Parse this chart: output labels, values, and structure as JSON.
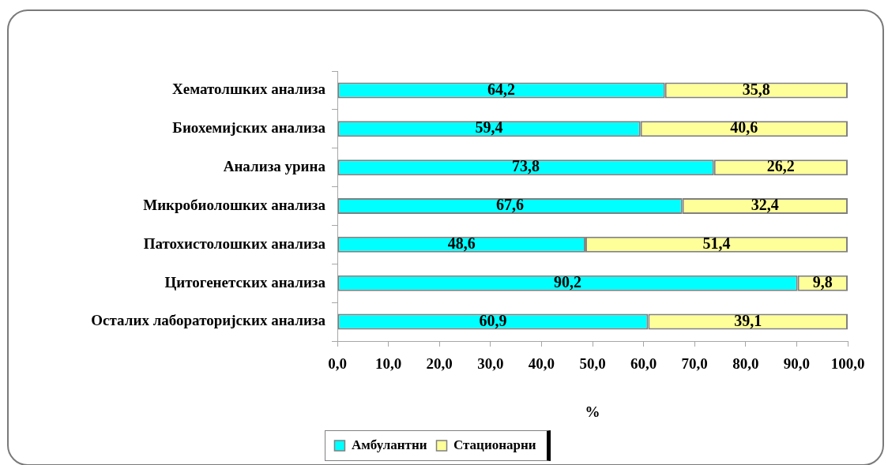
{
  "chart_data": {
    "type": "bar",
    "orientation": "horizontal",
    "stacked": true,
    "categories": [
      "Хематолшких анализа",
      "Биохемијских анализа",
      "Анализа урина",
      "Микробиолошких анализа",
      "Патохистолошких анализа",
      "Цитогенетских анализа",
      "Осталих лабораторијских анализа"
    ],
    "series": [
      {
        "name": "Амбулантни",
        "color": "#00ffff",
        "values": [
          64.2,
          59.4,
          73.8,
          67.6,
          48.6,
          90.2,
          60.9
        ],
        "value_labels": [
          "64,2",
          "59,4",
          "73,8",
          "67,6",
          "48,6",
          "90,2",
          "60,9"
        ]
      },
      {
        "name": "Стационарни",
        "color": "#ffff99",
        "values": [
          35.8,
          40.6,
          26.2,
          32.4,
          51.4,
          9.8,
          39.1
        ],
        "value_labels": [
          "35,8",
          "40,6",
          "26,2",
          "32,4",
          "51,4",
          "9,8",
          "39,1"
        ]
      }
    ],
    "xlim": [
      0,
      100
    ],
    "xticks": [
      {
        "value": 0,
        "label": "0,0"
      },
      {
        "value": 10,
        "label": "10,0"
      },
      {
        "value": 20,
        "label": "20,0"
      },
      {
        "value": 30,
        "label": "30,0"
      },
      {
        "value": 40,
        "label": "40,0"
      },
      {
        "value": 50,
        "label": "50,0"
      },
      {
        "value": 60,
        "label": "60,0"
      },
      {
        "value": 70,
        "label": "70,0"
      },
      {
        "value": 80,
        "label": "80,0"
      },
      {
        "value": 90,
        "label": "90,0"
      },
      {
        "value": 100,
        "label": "100,0"
      }
    ],
    "xlabel": "%",
    "grid": false,
    "legend": "bottom"
  }
}
